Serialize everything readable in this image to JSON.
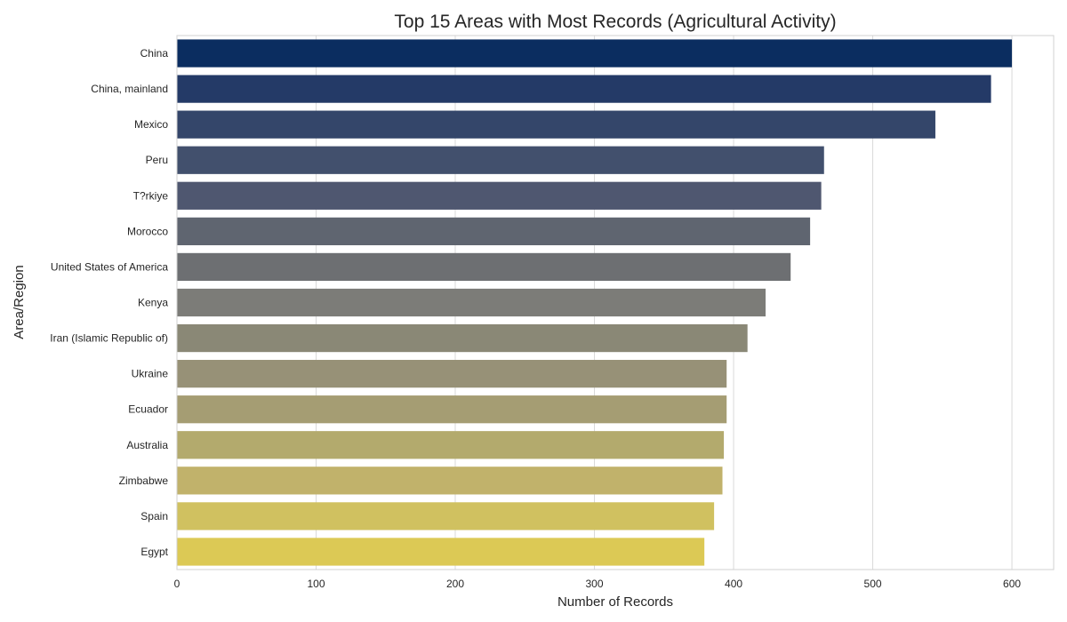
{
  "chart_data": {
    "type": "bar",
    "orientation": "horizontal",
    "title": "Top 15 Areas with Most Records (Agricultural Activity)",
    "xlabel": "Number of Records",
    "ylabel": "Area/Region",
    "xlim": [
      0,
      630
    ],
    "xticks": [
      0,
      100,
      200,
      300,
      400,
      500,
      600
    ],
    "grid": true,
    "categories": [
      "China",
      "China, mainland",
      "Mexico",
      "Peru",
      "T?rkiye",
      "Morocco",
      "United States of America",
      "Kenya",
      "Iran (Islamic Republic of)",
      "Ukraine",
      "Ecuador",
      "Australia",
      "Zimbabwe",
      "Spain",
      "Egypt"
    ],
    "values": [
      600,
      585,
      545,
      465,
      463,
      455,
      441,
      423,
      410,
      395,
      395,
      393,
      392,
      386,
      379
    ],
    "colors": [
      "#0b2d60",
      "#243a67",
      "#34466a",
      "#42506d",
      "#4f5770",
      "#5f6570",
      "#6d6f72",
      "#7c7c78",
      "#8a8876",
      "#979177",
      "#a59d73",
      "#b3aa6d",
      "#c1b26b",
      "#d0c160",
      "#dcc955"
    ]
  }
}
